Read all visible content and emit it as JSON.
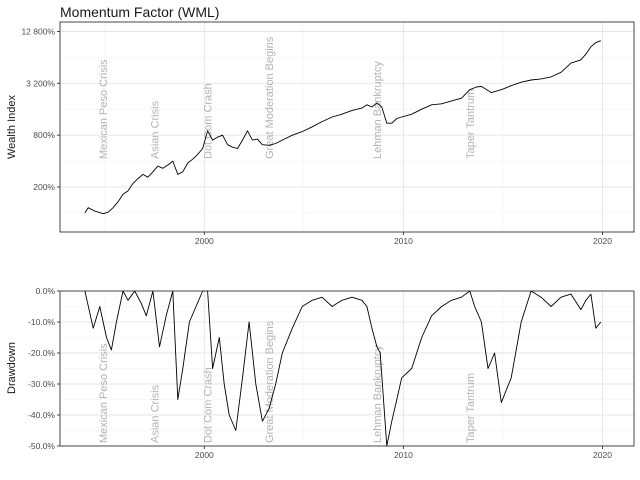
{
  "title": "Momentum Factor (WML)",
  "chart_data": [
    {
      "type": "line",
      "ylabel": "Wealth Index",
      "y_scale": "log",
      "xlim": [
        "1992-10",
        "2021-08"
      ],
      "ylim": [
        60,
        16500
      ],
      "x_ticks": [
        "2000",
        "2010",
        "2020"
      ],
      "y_ticks": [
        {
          "value": 200,
          "label": "200%"
        },
        {
          "value": 800,
          "label": "800%"
        },
        {
          "value": 3200,
          "label": "3 200%"
        },
        {
          "value": 12800,
          "label": "12 800%"
        }
      ],
      "events": [
        {
          "label": "Mexican Peso Crisis",
          "date": "1994-12"
        },
        {
          "label": "Asian Crisis",
          "date": "1997-07"
        },
        {
          "label": "Dot Com Crash",
          "date": "2000-03"
        },
        {
          "label": "Great Moderation Begins",
          "date": "2003-04"
        },
        {
          "label": "Lehman Bankruptcy",
          "date": "2008-09"
        },
        {
          "label": "Taper Tantrum",
          "date": "2013-05"
        }
      ],
      "series": [
        {
          "x": [
            "1994-01",
            "1994-03",
            "1994-07",
            "1994-12",
            "1995-03",
            "1995-06",
            "1995-09",
            "1995-12",
            "1996-03",
            "1996-06",
            "1996-09",
            "1996-12",
            "1997-03",
            "1997-06",
            "1997-09",
            "1997-12",
            "1998-03",
            "1998-06",
            "1998-09",
            "1998-12",
            "1999-03",
            "1999-06",
            "1999-09",
            "1999-12",
            "2000-03",
            "2000-06",
            "2000-09",
            "2000-12",
            "2001-03",
            "2001-06",
            "2001-09",
            "2001-12",
            "2002-03",
            "2002-06",
            "2002-09",
            "2002-12",
            "2003-04",
            "2003-08",
            "2003-12",
            "2004-06",
            "2004-12",
            "2005-06",
            "2005-12",
            "2006-06",
            "2006-12",
            "2007-06",
            "2007-12",
            "2008-03",
            "2008-06",
            "2008-09",
            "2008-12",
            "2009-03",
            "2009-06",
            "2009-09",
            "2009-12",
            "2010-06",
            "2010-12",
            "2011-06",
            "2011-12",
            "2012-06",
            "2012-12",
            "2013-05",
            "2013-09",
            "2013-12",
            "2014-06",
            "2014-12",
            "2015-06",
            "2015-12",
            "2016-06",
            "2016-12",
            "2017-06",
            "2017-12",
            "2018-06",
            "2018-12",
            "2019-03",
            "2019-06",
            "2019-09",
            "2019-12"
          ],
          "values": [
            100,
            115,
            105,
            98,
            102,
            115,
            135,
            165,
            180,
            220,
            250,
            280,
            260,
            300,
            350,
            330,
            360,
            400,
            280,
            300,
            380,
            420,
            480,
            560,
            900,
            700,
            760,
            800,
            620,
            580,
            560,
            700,
            900,
            700,
            720,
            620,
            610,
            640,
            700,
            800,
            880,
            1000,
            1150,
            1300,
            1400,
            1550,
            1650,
            1800,
            1700,
            1900,
            1700,
            1100,
            1100,
            1250,
            1300,
            1400,
            1600,
            1800,
            1850,
            2000,
            2150,
            2700,
            2900,
            2950,
            2500,
            2700,
            3000,
            3300,
            3500,
            3600,
            3800,
            4300,
            5500,
            6000,
            7000,
            8500,
            9500,
            10000
          ]
        }
      ]
    },
    {
      "type": "line",
      "ylabel": "Drawdown",
      "xlim": [
        "1992-10",
        "2021-08"
      ],
      "ylim": [
        -50,
        0
      ],
      "x_ticks": [
        "2000",
        "2010",
        "2020"
      ],
      "y_ticks": [
        {
          "value": 0,
          "label": "0.0%"
        },
        {
          "value": -10,
          "label": "-10.0%"
        },
        {
          "value": -20,
          "label": "-20.0%"
        },
        {
          "value": -30,
          "label": "-30.0%"
        },
        {
          "value": -40,
          "label": "-40.0%"
        },
        {
          "value": -50,
          "label": "-50.0%"
        }
      ],
      "events": [
        {
          "label": "Mexican Peso Crisis",
          "date": "1994-12"
        },
        {
          "label": "Asian Crisis",
          "date": "1997-07"
        },
        {
          "label": "Dot Com Crash",
          "date": "2000-03"
        },
        {
          "label": "Great Moderation Begins",
          "date": "2003-04"
        },
        {
          "label": "Lehman Bankruptcy",
          "date": "2008-09"
        },
        {
          "label": "Taper Tantrum",
          "date": "2013-05"
        }
      ],
      "series": [
        {
          "x": [
            "1994-01",
            "1994-06",
            "1994-10",
            "1995-02",
            "1995-05",
            "1995-08",
            "1995-12",
            "1996-03",
            "1996-07",
            "1996-11",
            "1997-02",
            "1997-06",
            "1997-10",
            "1998-02",
            "1998-06",
            "1998-09",
            "1998-12",
            "1999-04",
            "1999-08",
            "1999-12",
            "2000-03",
            "2000-06",
            "2000-10",
            "2001-01",
            "2001-04",
            "2001-08",
            "2001-12",
            "2002-04",
            "2002-08",
            "2002-12",
            "2003-04",
            "2003-08",
            "2003-12",
            "2004-06",
            "2004-12",
            "2005-06",
            "2005-12",
            "2006-06",
            "2006-12",
            "2007-06",
            "2007-12",
            "2008-03",
            "2008-06",
            "2008-09",
            "2008-11",
            "2009-03",
            "2009-06",
            "2009-09",
            "2009-12",
            "2010-06",
            "2010-12",
            "2011-06",
            "2011-12",
            "2012-06",
            "2012-12",
            "2013-05",
            "2013-08",
            "2013-12",
            "2014-04",
            "2014-08",
            "2014-12",
            "2015-06",
            "2015-12",
            "2016-06",
            "2016-12",
            "2017-06",
            "2017-12",
            "2018-06",
            "2018-12",
            "2019-03",
            "2019-06",
            "2019-09",
            "2019-12"
          ],
          "values": [
            0,
            -12,
            -5,
            -15,
            -19,
            -10,
            0,
            -3,
            0,
            -4,
            -8,
            0,
            -18,
            -8,
            0,
            -35,
            -25,
            -10,
            -5,
            0,
            0,
            -25,
            -15,
            -30,
            -40,
            -45,
            -28,
            -10,
            -30,
            -42,
            -38,
            -30,
            -20,
            -12,
            -5,
            -3,
            -2,
            -5,
            -3,
            -2,
            -3,
            -5,
            -12,
            -18,
            -20,
            -50,
            -42,
            -35,
            -28,
            -25,
            -15,
            -8,
            -5,
            -3,
            -2,
            0,
            -5,
            -10,
            -25,
            -20,
            -36,
            -28,
            -10,
            0,
            -2,
            -5,
            -2,
            -1,
            -6,
            -3,
            -1,
            -12,
            -10
          ]
        }
      ]
    }
  ]
}
